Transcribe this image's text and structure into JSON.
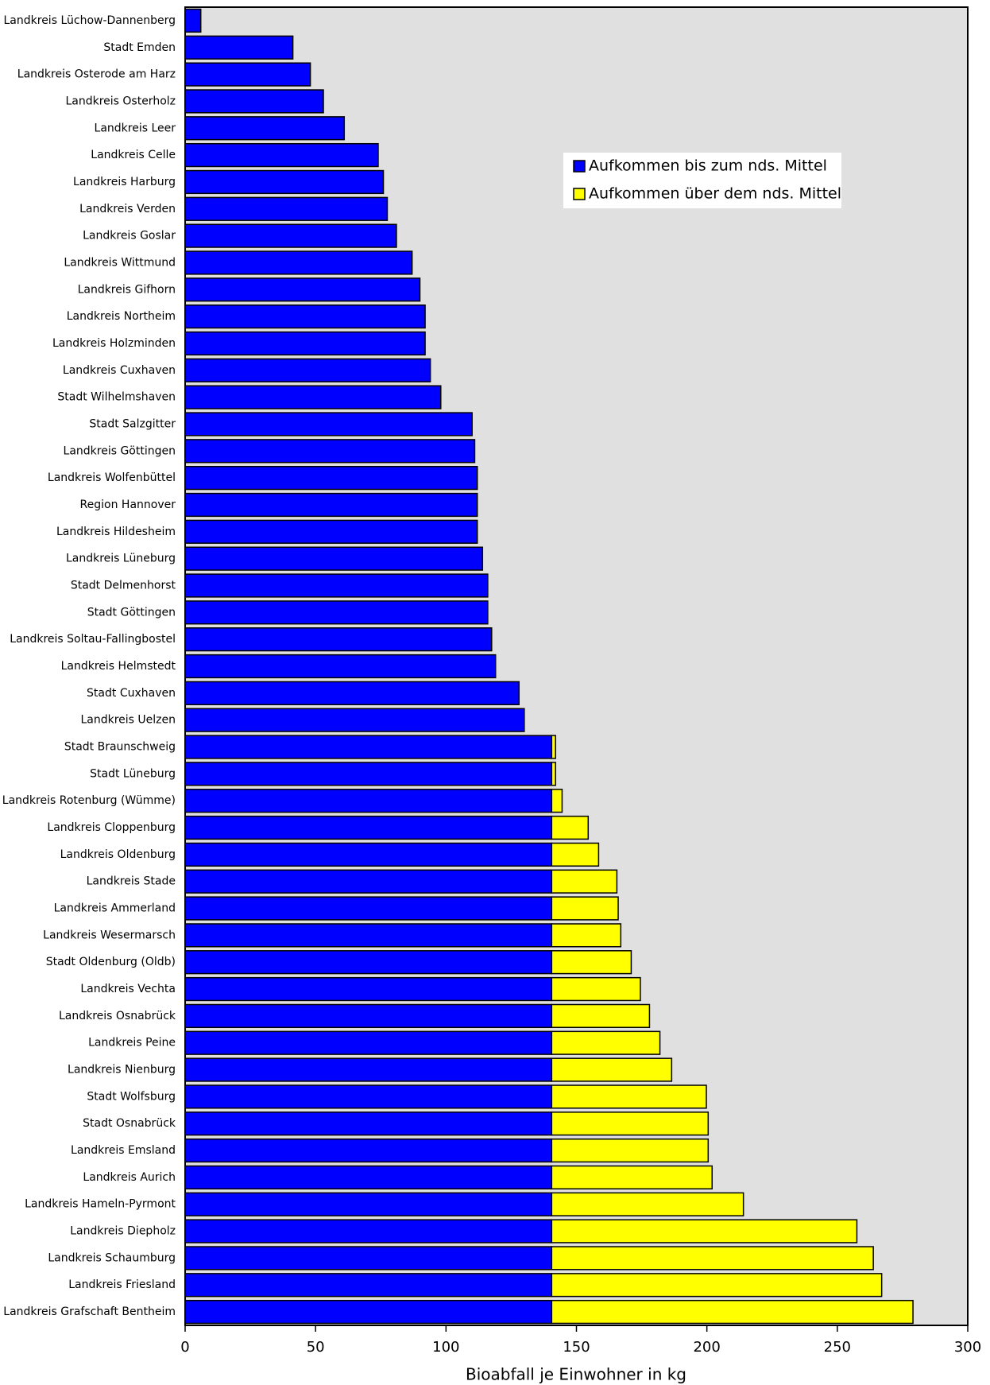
{
  "chart_data": {
    "type": "stacked_barh",
    "xlabel": "Bioabfall je Einwohner in kg",
    "categories": [
      "Landkreis Lüchow-Dannenberg",
      "Stadt Emden",
      "Landkreis Osterode am Harz",
      "Landkreis Osterholz",
      "Landkreis Leer",
      "Landkreis Celle",
      "Landkreis Harburg",
      "Landkreis Verden",
      "Landkreis Goslar",
      "Landkreis Wittmund",
      "Landkreis Gifhorn",
      "Landkreis Northeim",
      "Landkreis Holzminden",
      "Landkreis Cuxhaven",
      "Stadt Wilhelmshaven",
      "Stadt Salzgitter",
      "Landkreis Göttingen",
      "Landkreis Wolfenbüttel",
      "Region Hannover",
      "Landkreis Hildesheim",
      "Landkreis Lüneburg",
      "Stadt Delmenhorst",
      "Stadt Göttingen",
      "Landkreis Soltau-Fallingbostel",
      "Landkreis Helmstedt",
      "Stadt Cuxhaven",
      "Landkreis Uelzen",
      "Stadt Braunschweig",
      "Stadt Lüneburg",
      "Landkreis Rotenburg (Wümme)",
      "Landkreis Cloppenburg",
      "Landkreis Oldenburg",
      "Landkreis Stade",
      "Landkreis Ammerland",
      "Landkreis Wesermarsch",
      "Stadt Oldenburg (Oldb)",
      "Landkreis Vechta",
      "Landkreis Osnabrück",
      "Landkreis Peine",
      "Landkreis Nienburg",
      "Stadt Wolfsburg",
      "Stadt Osnabrück",
      "Landkreis Emsland",
      "Landkreis Aurich",
      "Landkreis Hameln-Pyrmont",
      "Landkreis Diepholz",
      "Landkreis Schaumburg",
      "Landkreis Friesland",
      "Landkreis Grafschaft Bentheim"
    ],
    "series": [
      {
        "name": "Aufkommen bis zum nds. Mittel",
        "color": "#0000ff",
        "values": [
          6,
          41.3,
          48,
          53,
          61,
          74,
          76,
          77.5,
          81,
          87,
          90,
          92,
          92,
          94,
          98,
          110,
          111,
          112,
          112,
          112,
          114,
          116,
          116,
          117.5,
          119,
          128,
          130,
          140.5,
          140.5,
          140.5,
          140.5,
          140.5,
          140.5,
          140.5,
          140.5,
          140.5,
          140.5,
          140.5,
          140.5,
          140.5,
          140.5,
          140.5,
          140.5,
          140.5,
          140.5,
          140.5,
          140.5,
          140.5,
          140.5
        ]
      },
      {
        "name": "Aufkommen über dem nds. Mittel",
        "color": "#ffff00",
        "values": [
          null,
          null,
          null,
          null,
          null,
          null,
          null,
          null,
          null,
          null,
          null,
          null,
          null,
          null,
          null,
          null,
          null,
          null,
          null,
          null,
          null,
          null,
          null,
          null,
          null,
          null,
          null,
          1.5,
          1.5,
          4,
          14,
          18,
          25,
          25.5,
          26.5,
          30.5,
          34,
          37.5,
          41.5,
          46,
          59.3,
          60,
          60,
          61.5,
          73.5,
          117,
          123.3,
          126.5,
          138.5
        ]
      }
    ],
    "xlim": [
      0,
      300
    ],
    "xticks": [
      0,
      50,
      100,
      150,
      200,
      250,
      300
    ],
    "plot_background": "#e0e0e0"
  }
}
